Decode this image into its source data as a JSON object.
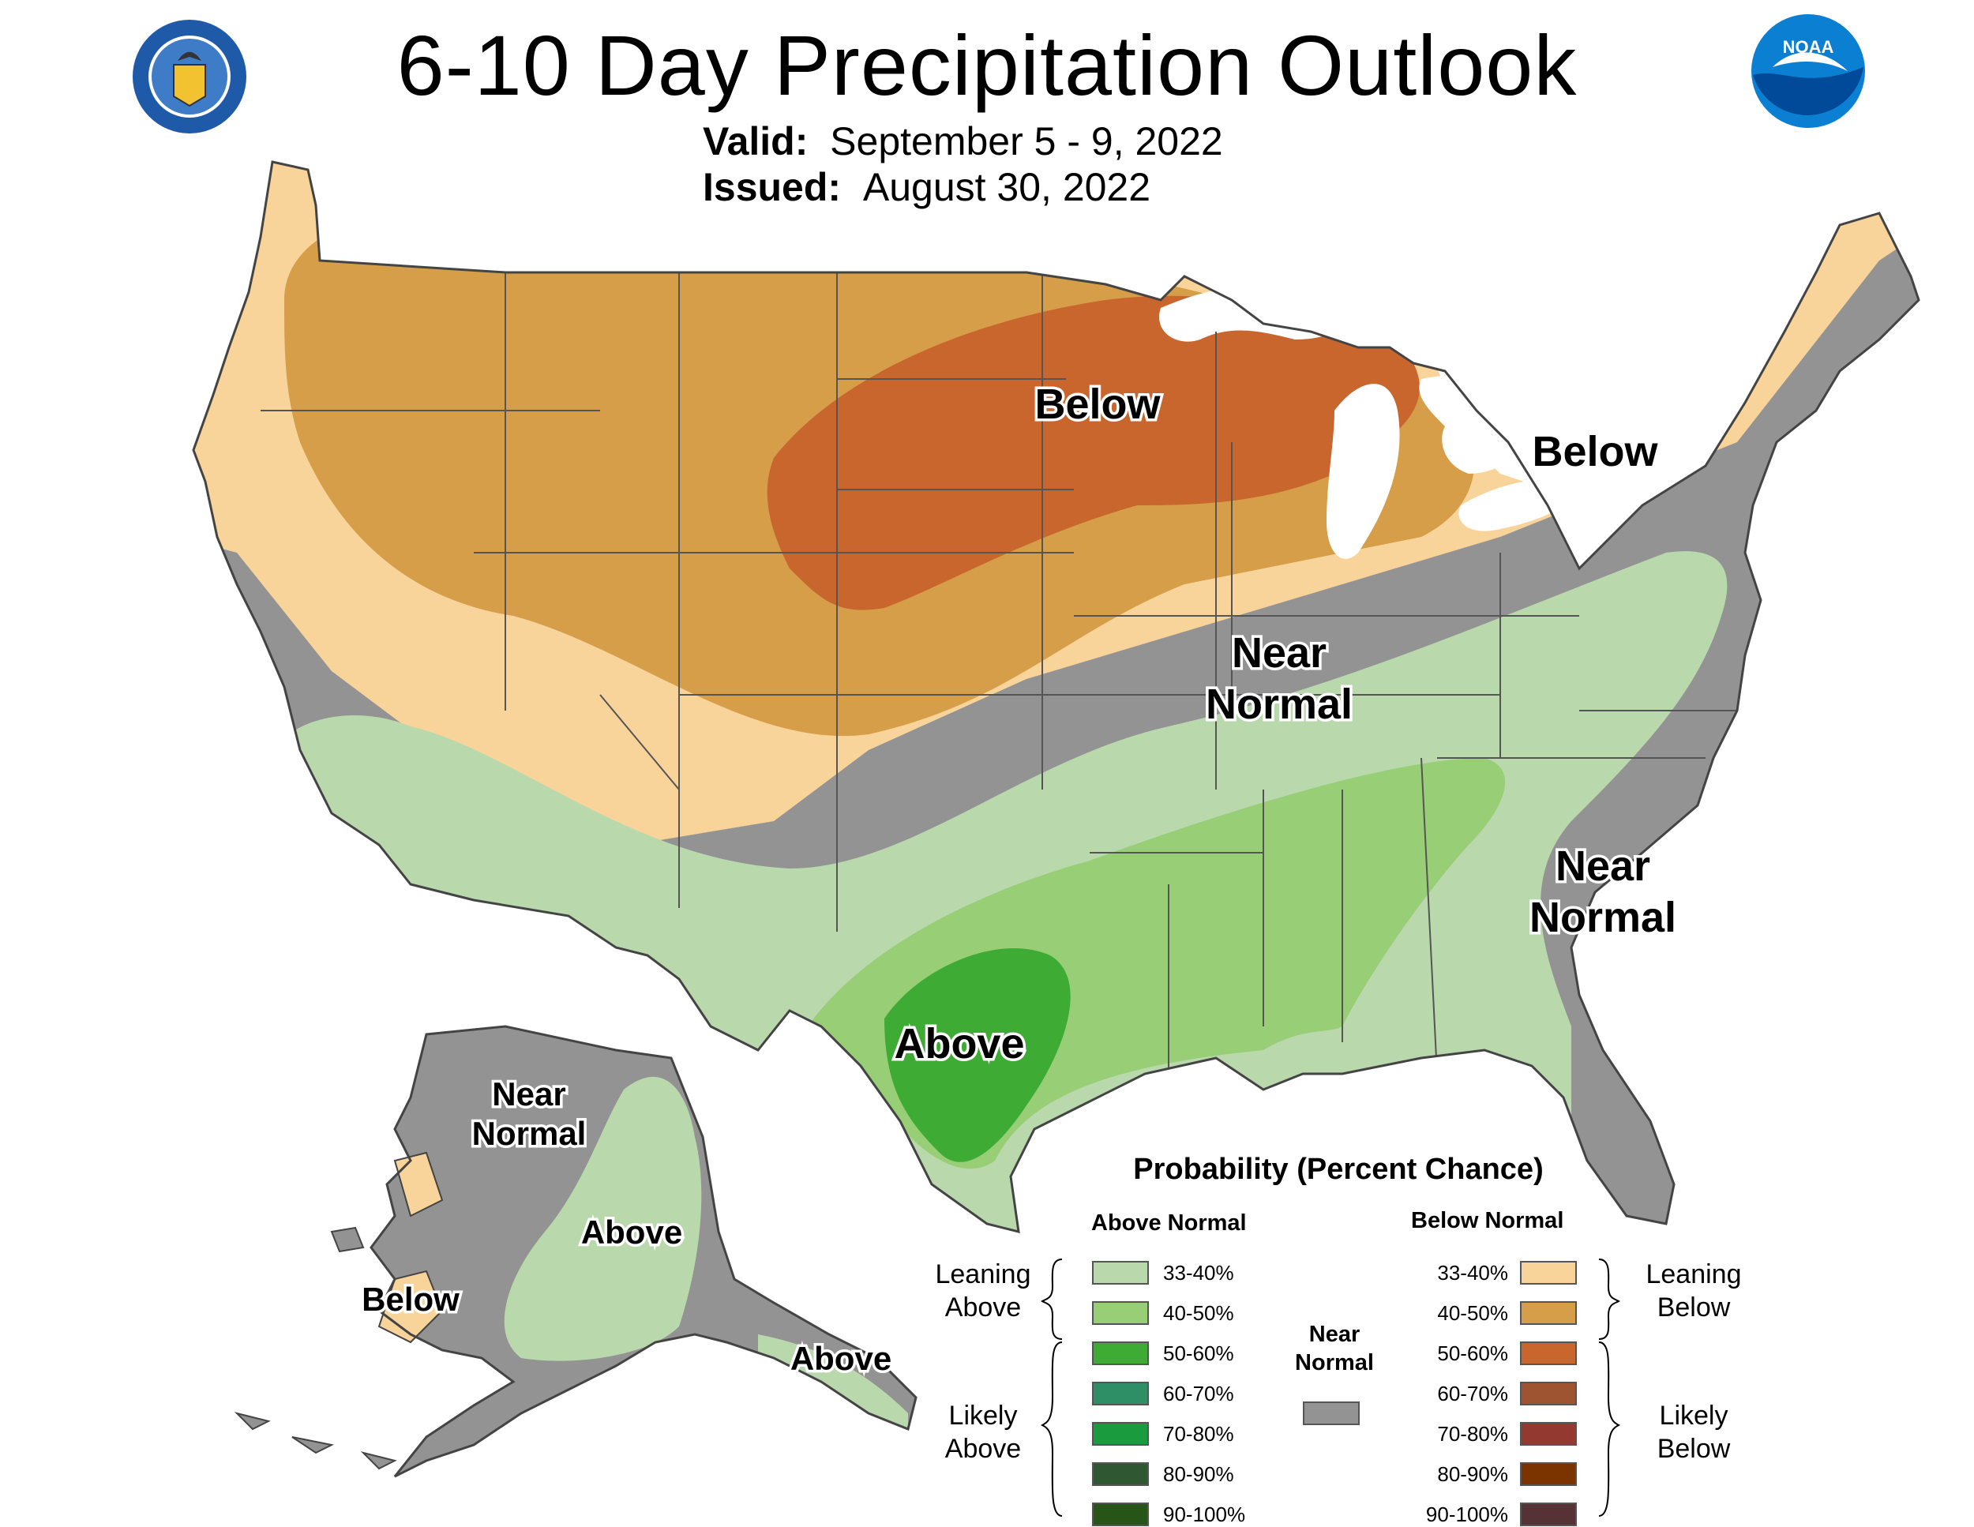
{
  "title": "6-10 Day Precipitation Outlook",
  "valid_label": "Valid:",
  "valid_value": "September 5 - 9, 2022",
  "issued_label": "Issued:",
  "issued_value": "August 30, 2022",
  "logos": {
    "left": "US Department of Commerce seal",
    "right": "NOAA logo",
    "noaa_text": "NOAA"
  },
  "region_labels": {
    "north_below": "Below",
    "northeast_below": "Below",
    "central_near": "Near",
    "central_normal": "Normal",
    "southeast_near": "Near",
    "southeast_normal": "Normal",
    "texas_above": "Above",
    "alaska_near": "Near",
    "alaska_normal": "Normal",
    "alaska_above": "Above",
    "alaska_below": "Below",
    "panhandle_above": "Above"
  },
  "legend": {
    "title": "Probability (Percent Chance)",
    "above_header": "Above Normal",
    "below_header": "Below Normal",
    "near_header_1": "Near",
    "near_header_2": "Normal",
    "leaning_above_1": "Leaning",
    "leaning_above_2": "Above",
    "likely_above_1": "Likely",
    "likely_above_2": "Above",
    "leaning_below_1": "Leaning",
    "leaning_below_2": "Below",
    "likely_below_1": "Likely",
    "likely_below_2": "Below",
    "above": [
      {
        "range": "33-40%",
        "color": "#b9d9ad"
      },
      {
        "range": "40-50%",
        "color": "#97ce76"
      },
      {
        "range": "50-60%",
        "color": "#3eab34"
      },
      {
        "range": "60-70%",
        "color": "#2e8e65"
      },
      {
        "range": "70-80%",
        "color": "#1a9c3e"
      },
      {
        "range": "80-90%",
        "color": "#2e5732"
      },
      {
        "range": "90-100%",
        "color": "#275518"
      }
    ],
    "below": [
      {
        "range": "33-40%",
        "color": "#f8d39a"
      },
      {
        "range": "40-50%",
        "color": "#d69e48"
      },
      {
        "range": "50-60%",
        "color": "#c8662e"
      },
      {
        "range": "60-70%",
        "color": "#9e5430"
      },
      {
        "range": "70-80%",
        "color": "#93392f"
      },
      {
        "range": "80-90%",
        "color": "#7b3300"
      },
      {
        "range": "90-100%",
        "color": "#563236"
      }
    ],
    "near_color": "#939393"
  },
  "colors": {
    "lake_white": "#ffffff",
    "border": "#444444",
    "near_normal": "#939393"
  }
}
